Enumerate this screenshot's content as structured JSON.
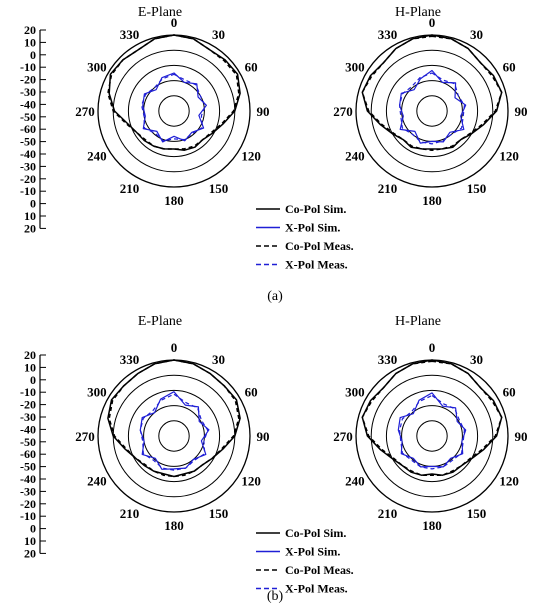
{
  "chart_data": {
    "type": "polar",
    "description_units": "dB",
    "radial_scale_labels": [
      "20",
      "10",
      "0",
      "-10",
      "-20",
      "-30",
      "-40",
      "-50",
      "-60",
      "-50",
      "-40",
      "-30",
      "-20",
      "-10",
      "0",
      "10",
      "20"
    ],
    "angle_labels": [
      "0",
      "30",
      "60",
      "90",
      "120",
      "150",
      "180",
      "210",
      "240",
      "270",
      "300",
      "330"
    ],
    "legend": [
      {
        "label": "Co-Pol Sim.",
        "color": "#000000",
        "dash": "solid"
      },
      {
        "label": "X-Pol Sim.",
        "color": "#1f1fd6",
        "dash": "solid"
      },
      {
        "label": "Co-Pol Meas.",
        "color": "#000000",
        "dash": "dashed"
      },
      {
        "label": "X-Pol Meas.",
        "color": "#1f1fd6",
        "dash": "dashed"
      }
    ],
    "panels": [
      {
        "caption": "(a)",
        "plots": [
          {
            "title": "E-Plane",
            "series": [
              {
                "name": "Co-Pol Sim.",
                "theta": [
                  0,
                  15,
                  30,
                  45,
                  60,
                  75,
                  90,
                  105,
                  120,
                  135,
                  150,
                  165,
                  180,
                  195,
                  210,
                  225,
                  240,
                  255,
                  270,
                  285,
                  300,
                  315,
                  330,
                  345,
                  360
                ],
                "gain": [
                  0,
                  -1,
                  -4,
                  -3,
                  -2,
                  -6,
                  -12,
                  -20,
                  -25,
                  -28,
                  -27,
                  -28,
                  -30,
                  -29,
                  -28,
                  -27,
                  -26,
                  -22,
                  -13,
                  -7,
                  -2,
                  -3,
                  -4,
                  -1,
                  0
                ]
              },
              {
                "name": "X-Pol Sim.",
                "theta": [
                  0,
                  20,
                  40,
                  60,
                  80,
                  100,
                  120,
                  140,
                  160,
                  180,
                  200,
                  220,
                  240,
                  260,
                  280,
                  300,
                  320,
                  340,
                  360
                ],
                "gain": [
                  -30,
                  -36,
                  -32,
                  -38,
                  -34,
                  -40,
                  -33,
                  -38,
                  -35,
                  -40,
                  -34,
                  -39,
                  -32,
                  -37,
                  -35,
                  -33,
                  -38,
                  -32,
                  -30
                ]
              },
              {
                "name": "Co-Pol Meas.",
                "theta": [
                  0,
                  15,
                  30,
                  45,
                  60,
                  75,
                  90,
                  105,
                  120,
                  135,
                  150,
                  165,
                  180,
                  195,
                  210,
                  225,
                  240,
                  255,
                  270,
                  285,
                  300,
                  315,
                  330,
                  345,
                  360
                ],
                "gain": [
                  0,
                  -1,
                  -4,
                  -4,
                  -3,
                  -7,
                  -13,
                  -21,
                  -26,
                  -28,
                  -28,
                  -29,
                  -30,
                  -29,
                  -28,
                  -28,
                  -26,
                  -21,
                  -12,
                  -6,
                  -3,
                  -3,
                  -4,
                  -1,
                  0
                ]
              },
              {
                "name": "X-Pol Meas.",
                "theta": [
                  0,
                  20,
                  40,
                  60,
                  80,
                  100,
                  120,
                  140,
                  160,
                  180,
                  200,
                  220,
                  240,
                  260,
                  280,
                  300,
                  320,
                  340,
                  360
                ],
                "gain": [
                  -31,
                  -34,
                  -33,
                  -36,
                  -35,
                  -38,
                  -34,
                  -37,
                  -36,
                  -38,
                  -35,
                  -37,
                  -33,
                  -36,
                  -34,
                  -34,
                  -36,
                  -33,
                  -31
                ]
              }
            ]
          },
          {
            "title": "H-Plane",
            "series": [
              {
                "name": "Co-Pol Sim.",
                "theta": [
                  0,
                  15,
                  30,
                  45,
                  60,
                  75,
                  90,
                  105,
                  120,
                  135,
                  150,
                  165,
                  180,
                  195,
                  210,
                  225,
                  240,
                  255,
                  270,
                  285,
                  300,
                  315,
                  330,
                  345,
                  360
                ],
                "gain": [
                  0,
                  -1,
                  -3,
                  -6,
                  -4,
                  -3,
                  -9,
                  -18,
                  -24,
                  -28,
                  -27,
                  -29,
                  -30,
                  -29,
                  -27,
                  -28,
                  -24,
                  -18,
                  -9,
                  -3,
                  -4,
                  -6,
                  -3,
                  -1,
                  0
                ]
              },
              {
                "name": "X-Pol Sim.",
                "theta": [
                  0,
                  20,
                  40,
                  60,
                  80,
                  100,
                  120,
                  140,
                  160,
                  180,
                  200,
                  220,
                  240,
                  260,
                  280,
                  300,
                  320,
                  340,
                  360
                ],
                "gain": [
                  -28,
                  -36,
                  -31,
                  -39,
                  -33,
                  -37,
                  -31,
                  -38,
                  -34,
                  -36,
                  -33,
                  -39,
                  -31,
                  -37,
                  -34,
                  -32,
                  -38,
                  -33,
                  -28
                ]
              },
              {
                "name": "Co-Pol Meas.",
                "theta": [
                  0,
                  15,
                  30,
                  45,
                  60,
                  75,
                  90,
                  105,
                  120,
                  135,
                  150,
                  165,
                  180,
                  195,
                  210,
                  225,
                  240,
                  255,
                  270,
                  285,
                  300,
                  315,
                  330,
                  345,
                  360
                ],
                "gain": [
                  -1,
                  -1,
                  -3,
                  -6,
                  -5,
                  -3,
                  -10,
                  -19,
                  -25,
                  -28,
                  -28,
                  -29,
                  -29,
                  -29,
                  -28,
                  -28,
                  -25,
                  -19,
                  -10,
                  -3,
                  -5,
                  -6,
                  -3,
                  -1,
                  -1
                ]
              },
              {
                "name": "X-Pol Meas.",
                "theta": [
                  0,
                  20,
                  40,
                  60,
                  80,
                  100,
                  120,
                  140,
                  160,
                  180,
                  200,
                  220,
                  240,
                  260,
                  280,
                  300,
                  320,
                  340,
                  360
                ],
                "gain": [
                  -30,
                  -34,
                  -32,
                  -36,
                  -34,
                  -35,
                  -33,
                  -36,
                  -35,
                  -34,
                  -34,
                  -36,
                  -33,
                  -35,
                  -34,
                  -33,
                  -35,
                  -32,
                  -30
                ]
              }
            ]
          }
        ]
      },
      {
        "caption": "(b)",
        "plots": [
          {
            "title": "E-Plane",
            "series": [
              {
                "name": "Co-Pol Sim.",
                "theta": [
                  0,
                  15,
                  30,
                  45,
                  60,
                  75,
                  90,
                  105,
                  120,
                  135,
                  150,
                  165,
                  180,
                  195,
                  210,
                  225,
                  240,
                  255,
                  270,
                  285,
                  300,
                  315,
                  330,
                  345,
                  360
                ],
                "gain": [
                  0,
                  -1,
                  -3,
                  -4,
                  -3,
                  -6,
                  -12,
                  -20,
                  -25,
                  -28,
                  -28,
                  -29,
                  -28,
                  -29,
                  -28,
                  -27,
                  -25,
                  -20,
                  -12,
                  -6,
                  -3,
                  -4,
                  -3,
                  -1,
                  0
                ]
              },
              {
                "name": "X-Pol Sim.",
                "theta": [
                  0,
                  20,
                  40,
                  60,
                  80,
                  100,
                  120,
                  140,
                  160,
                  180,
                  200,
                  220,
                  240,
                  260,
                  280,
                  300,
                  320,
                  340,
                  360
                ],
                "gain": [
                  -25,
                  -34,
                  -30,
                  -37,
                  -32,
                  -38,
                  -31,
                  -36,
                  -33,
                  -34,
                  -32,
                  -37,
                  -31,
                  -36,
                  -33,
                  -31,
                  -36,
                  -29,
                  -25
                ]
              },
              {
                "name": "Co-Pol Meas.",
                "theta": [
                  0,
                  15,
                  30,
                  45,
                  60,
                  75,
                  90,
                  105,
                  120,
                  135,
                  150,
                  165,
                  180,
                  195,
                  210,
                  225,
                  240,
                  255,
                  270,
                  285,
                  300,
                  315,
                  330,
                  345,
                  360
                ],
                "gain": [
                  0,
                  -1,
                  -3,
                  -4,
                  -4,
                  -7,
                  -13,
                  -21,
                  -25,
                  -28,
                  -28,
                  -28,
                  -28,
                  -28,
                  -28,
                  -28,
                  -25,
                  -21,
                  -13,
                  -7,
                  -4,
                  -4,
                  -3,
                  -1,
                  0
                ]
              },
              {
                "name": "X-Pol Meas.",
                "theta": [
                  0,
                  20,
                  40,
                  60,
                  80,
                  100,
                  120,
                  140,
                  160,
                  180,
                  200,
                  220,
                  240,
                  260,
                  280,
                  300,
                  320,
                  340,
                  360
                ],
                "gain": [
                  -27,
                  -32,
                  -31,
                  -35,
                  -33,
                  -36,
                  -32,
                  -35,
                  -33,
                  -33,
                  -33,
                  -35,
                  -32,
                  -35,
                  -33,
                  -32,
                  -34,
                  -30,
                  -27
                ]
              }
            ]
          },
          {
            "title": "H-Plane",
            "series": [
              {
                "name": "Co-Pol Sim.",
                "theta": [
                  0,
                  15,
                  30,
                  45,
                  60,
                  75,
                  90,
                  105,
                  120,
                  135,
                  150,
                  165,
                  180,
                  195,
                  210,
                  225,
                  240,
                  255,
                  270,
                  285,
                  300,
                  315,
                  330,
                  345,
                  360
                ],
                "gain": [
                  0,
                  -1,
                  -3,
                  -6,
                  -4,
                  -3,
                  -9,
                  -18,
                  -24,
                  -27,
                  -27,
                  -28,
                  -30,
                  -28,
                  -27,
                  -27,
                  -24,
                  -18,
                  -9,
                  -3,
                  -4,
                  -6,
                  -3,
                  -1,
                  0
                ]
              },
              {
                "name": "X-Pol Sim.",
                "theta": [
                  0,
                  20,
                  40,
                  60,
                  80,
                  100,
                  120,
                  140,
                  160,
                  180,
                  200,
                  220,
                  240,
                  260,
                  280,
                  300,
                  320,
                  340,
                  360
                ],
                "gain": [
                  -26,
                  -35,
                  -31,
                  -37,
                  -33,
                  -36,
                  -32,
                  -37,
                  -34,
                  -36,
                  -34,
                  -37,
                  -32,
                  -36,
                  -33,
                  -31,
                  -37,
                  -30,
                  -26
                ]
              },
              {
                "name": "Co-Pol Meas.",
                "theta": [
                  0,
                  15,
                  30,
                  45,
                  60,
                  75,
                  90,
                  105,
                  120,
                  135,
                  150,
                  165,
                  180,
                  195,
                  210,
                  225,
                  240,
                  255,
                  270,
                  285,
                  300,
                  315,
                  330,
                  345,
                  360
                ],
                "gain": [
                  -1,
                  -1,
                  -3,
                  -6,
                  -5,
                  -3,
                  -10,
                  -19,
                  -25,
                  -27,
                  -28,
                  -28,
                  -29,
                  -28,
                  -28,
                  -27,
                  -25,
                  -19,
                  -10,
                  -3,
                  -5,
                  -6,
                  -3,
                  -1,
                  -1
                ]
              },
              {
                "name": "X-Pol Meas.",
                "theta": [
                  0,
                  20,
                  40,
                  60,
                  80,
                  100,
                  120,
                  140,
                  160,
                  180,
                  200,
                  220,
                  240,
                  260,
                  280,
                  300,
                  320,
                  340,
                  360
                ],
                "gain": [
                  -28,
                  -33,
                  -32,
                  -35,
                  -34,
                  -35,
                  -33,
                  -35,
                  -34,
                  -34,
                  -34,
                  -35,
                  -33,
                  -35,
                  -34,
                  -33,
                  -35,
                  -31,
                  -28
                ]
              }
            ]
          }
        ]
      }
    ]
  }
}
